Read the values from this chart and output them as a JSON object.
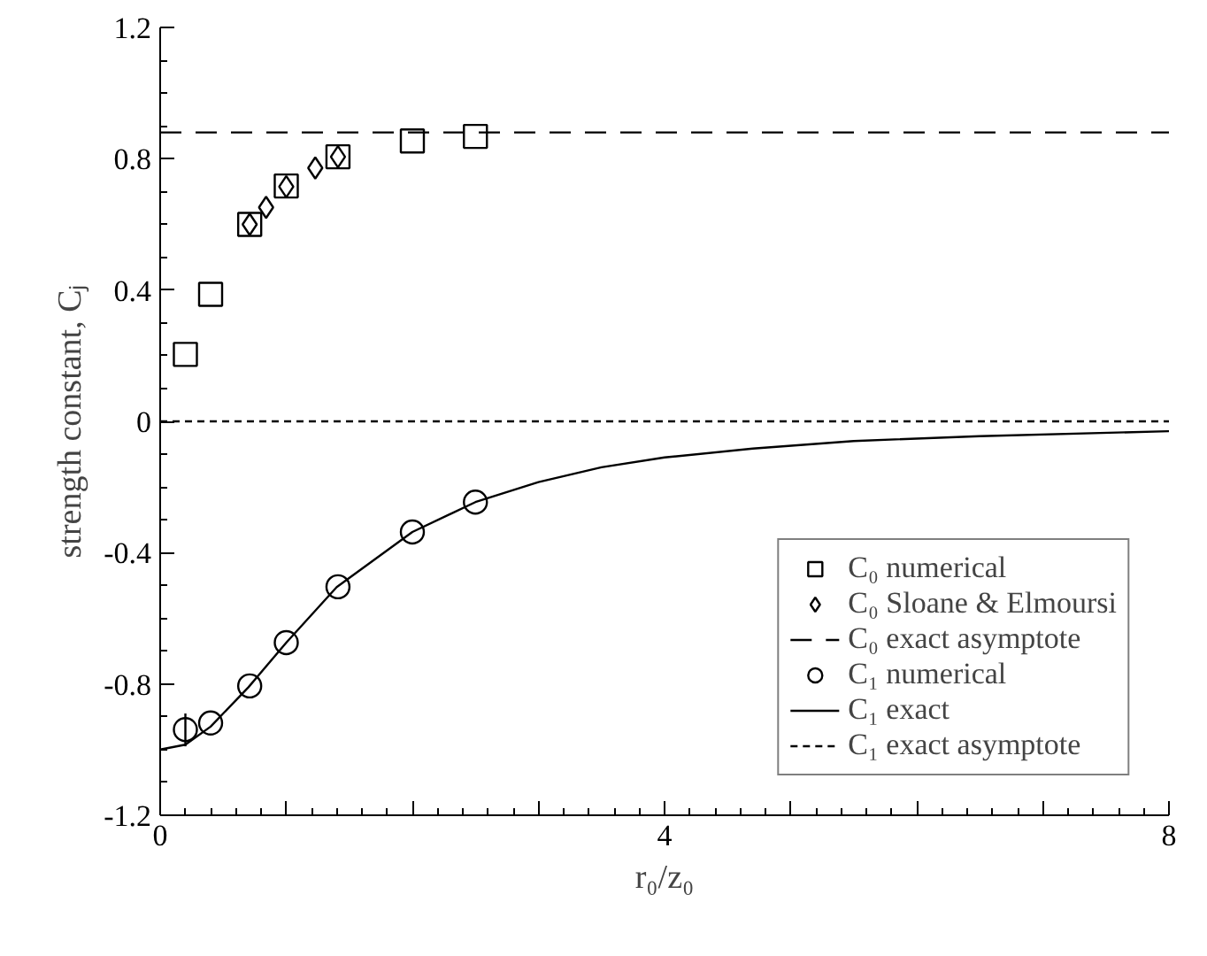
{
  "chart_data": {
    "type": "scatter",
    "xlabel": "r₀/z₀",
    "ylabel": "strength constant, Cⱼ",
    "xlim": [
      0,
      8
    ],
    "ylim": [
      -1.2,
      1.2
    ],
    "xticks": [
      0,
      {
        "value": 1,
        "label": null
      },
      {
        "value": 2,
        "label": null
      },
      {
        "value": 3,
        "label": null
      },
      4,
      {
        "value": 5,
        "label": null
      },
      {
        "value": 6,
        "label": null
      },
      {
        "value": 7,
        "label": null
      },
      8
    ],
    "yticks": [
      -1.2,
      -0.8,
      -0.4,
      0,
      0.4,
      0.8,
      1.2
    ],
    "grid": false,
    "legend": "bottom right",
    "series": [
      {
        "name": "C₀ numerical",
        "marker": "square",
        "color": "#000000",
        "x": [
          0.2,
          0.4,
          0.71,
          1.0,
          1.41,
          2.0,
          2.5
        ],
        "values": [
          0.204,
          0.387,
          0.6,
          0.717,
          0.806,
          0.854,
          0.868
        ]
      },
      {
        "name": "C₀ Sloane & Elmoursi",
        "marker": "diamond",
        "color": "#000000",
        "x": [
          0.71,
          0.84,
          1.0,
          1.23,
          1.41
        ],
        "values": [
          0.6,
          0.652,
          0.715,
          0.772,
          0.806
        ]
      },
      {
        "name": "C₀ exact asymptote",
        "type": "line",
        "line_style": "dashed",
        "color": "#000000",
        "x": [
          0,
          8
        ],
        "values": [
          0.88,
          0.88
        ]
      },
      {
        "name": "C₁ numerical",
        "marker": "circle",
        "color": "#000000",
        "x": [
          0.2,
          0.4,
          0.71,
          1.0,
          1.41,
          2.0,
          2.5
        ],
        "values": [
          -0.939,
          -0.919,
          -0.806,
          -0.674,
          -0.504,
          -0.337,
          -0.246
        ],
        "errors": [
          [
            -0.99,
            -0.89
          ],
          null,
          null,
          null,
          null,
          null,
          null
        ]
      },
      {
        "name": "C₁ exact",
        "type": "line",
        "line_style": "solid",
        "color": "#000000",
        "x": [
          0,
          0.2,
          0.4,
          0.7,
          1.0,
          1.4,
          2.0,
          2.5,
          3.0,
          3.5,
          4.0,
          4.7,
          5.5,
          6.5,
          8.0
        ],
        "values": [
          -1.0,
          -0.985,
          -0.93,
          -0.81,
          -0.674,
          -0.505,
          -0.337,
          -0.246,
          -0.185,
          -0.14,
          -0.11,
          -0.083,
          -0.06,
          -0.045,
          -0.03
        ]
      },
      {
        "name": "C₁ exact asymptote",
        "type": "line",
        "line_style": "dotted",
        "color": "#000000",
        "x": [
          0,
          8
        ],
        "values": [
          0,
          0
        ]
      }
    ]
  }
}
